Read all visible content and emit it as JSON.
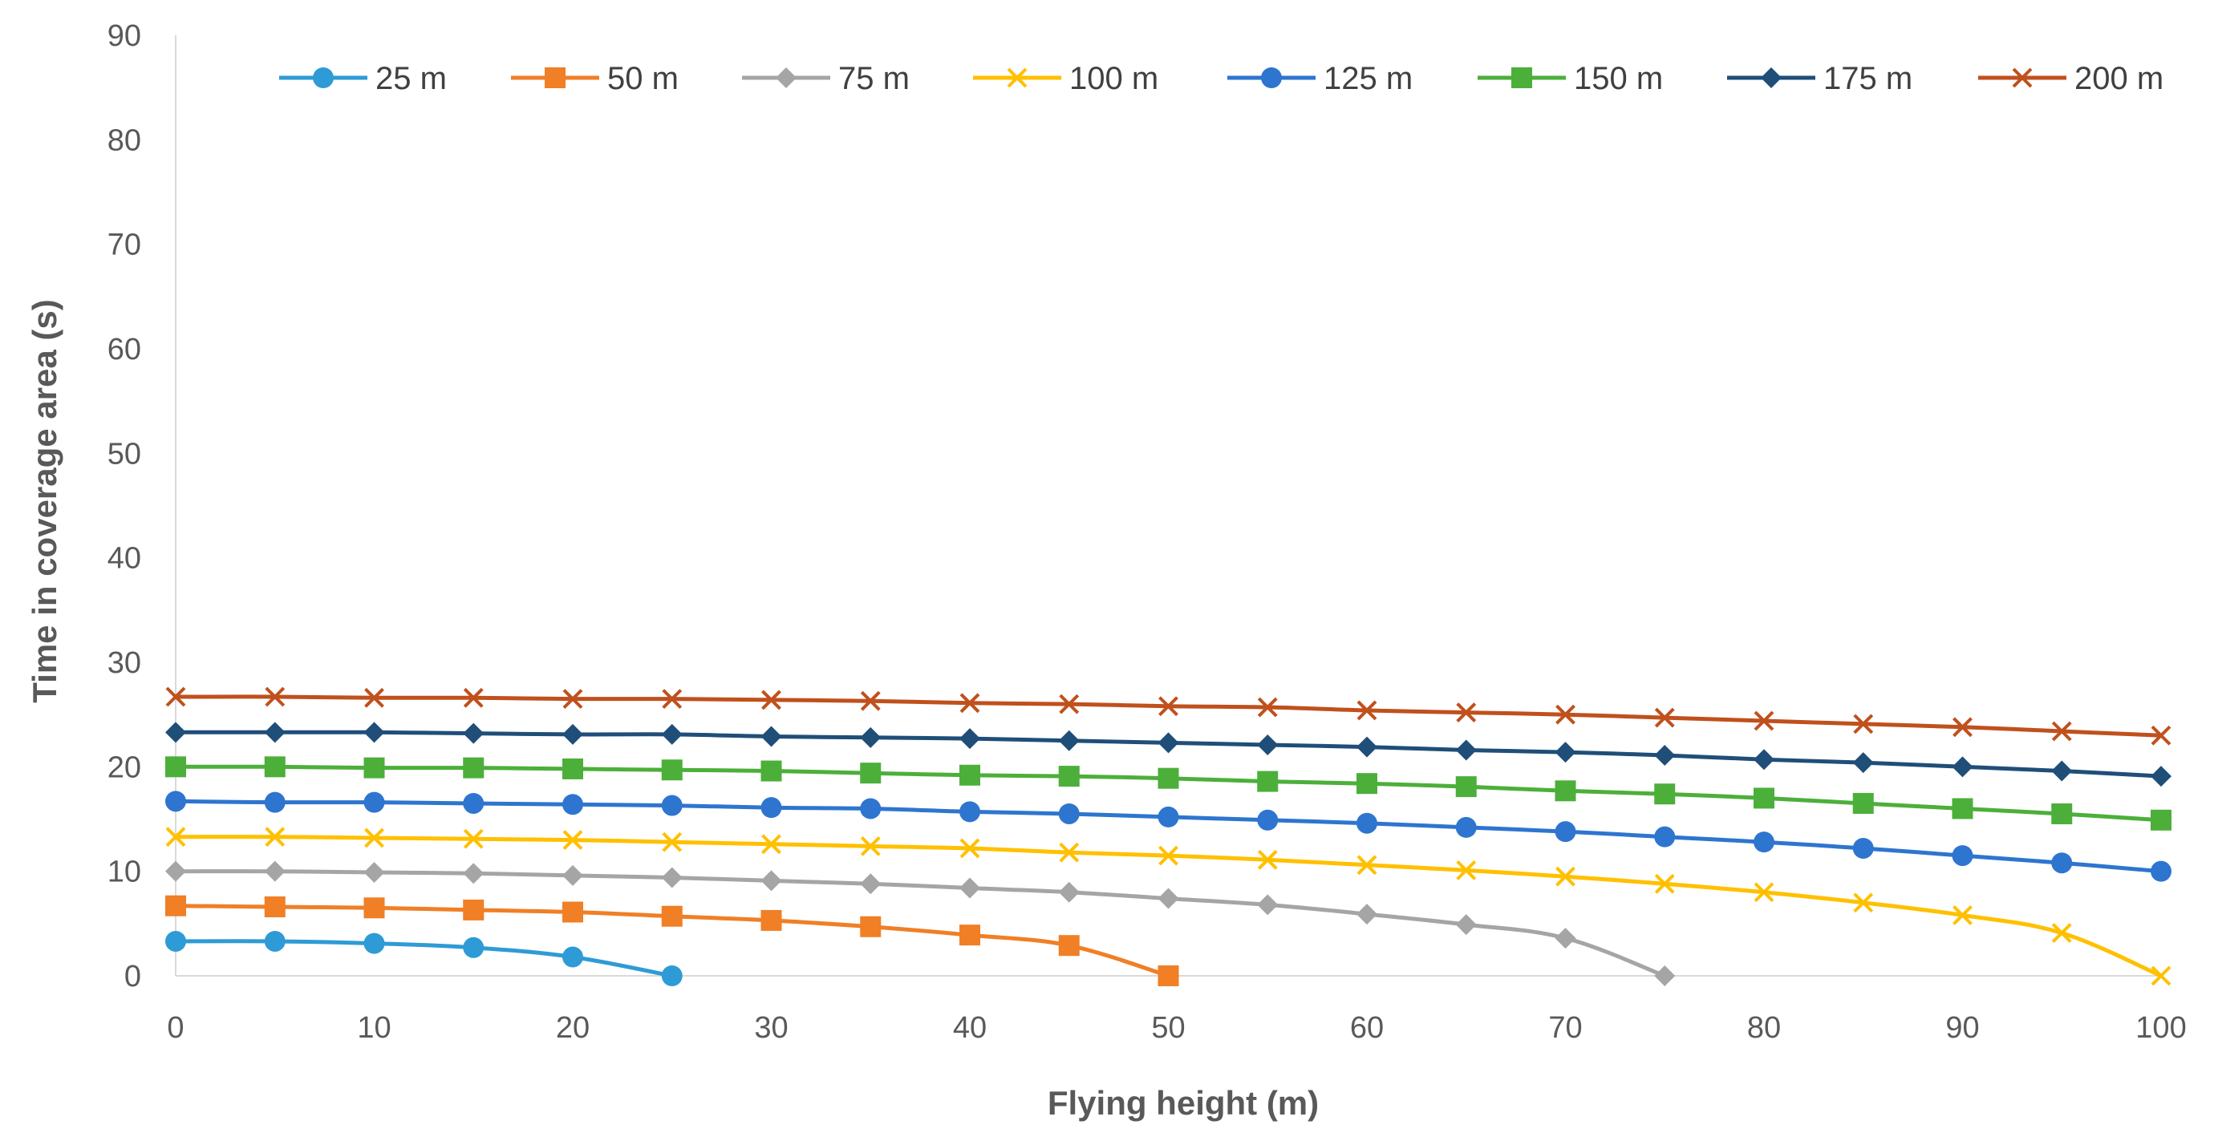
{
  "chart_data": {
    "type": "line",
    "title": "",
    "xlabel": "Flying height (m)",
    "ylabel": "Time in coverage area (s)",
    "xlim": [
      0,
      100
    ],
    "ylim": [
      0,
      90
    ],
    "x_ticks": [
      0,
      10,
      20,
      30,
      40,
      50,
      60,
      70,
      80,
      90,
      100
    ],
    "y_ticks": [
      0,
      10,
      20,
      30,
      40,
      50,
      60,
      70,
      80,
      90
    ],
    "grid": false,
    "legend_position": "top",
    "series": [
      {
        "name": "25 m",
        "color": "#2E9BD6",
        "marker": "circle",
        "x": [
          0,
          5,
          10,
          15,
          20,
          25
        ],
        "y": [
          3.3,
          3.3,
          3.1,
          2.7,
          1.8,
          0
        ]
      },
      {
        "name": "50 m",
        "color": "#F07F26",
        "marker": "square",
        "x": [
          0,
          5,
          10,
          15,
          20,
          25,
          30,
          35,
          40,
          45,
          50
        ],
        "y": [
          6.7,
          6.6,
          6.5,
          6.3,
          6.1,
          5.7,
          5.3,
          4.7,
          3.9,
          2.9,
          0
        ]
      },
      {
        "name": "75 m",
        "color": "#A5A5A5",
        "marker": "diamond",
        "x": [
          0,
          5,
          10,
          15,
          20,
          25,
          30,
          35,
          40,
          45,
          50,
          55,
          60,
          65,
          70,
          75
        ],
        "y": [
          10.0,
          10.0,
          9.9,
          9.8,
          9.6,
          9.4,
          9.1,
          8.8,
          8.4,
          8.0,
          7.4,
          6.8,
          5.9,
          4.9,
          3.6,
          0
        ]
      },
      {
        "name": "100 m",
        "color": "#FFC000",
        "marker": "x",
        "x": [
          0,
          5,
          10,
          15,
          20,
          25,
          30,
          35,
          40,
          45,
          50,
          55,
          60,
          65,
          70,
          75,
          80,
          85,
          90,
          95,
          100
        ],
        "y": [
          13.3,
          13.3,
          13.2,
          13.1,
          13.0,
          12.8,
          12.6,
          12.4,
          12.2,
          11.8,
          11.5,
          11.1,
          10.6,
          10.1,
          9.5,
          8.8,
          8.0,
          7.0,
          5.8,
          4.1,
          0
        ]
      },
      {
        "name": "125 m",
        "color": "#2E75CF",
        "marker": "circle",
        "x": [
          0,
          5,
          10,
          15,
          20,
          25,
          30,
          35,
          40,
          45,
          50,
          55,
          60,
          65,
          70,
          75,
          80,
          85,
          90,
          95,
          100
        ],
        "y": [
          16.7,
          16.6,
          16.6,
          16.5,
          16.4,
          16.3,
          16.1,
          16.0,
          15.7,
          15.5,
          15.2,
          14.9,
          14.6,
          14.2,
          13.8,
          13.3,
          12.8,
          12.2,
          11.5,
          10.8,
          10.0
        ]
      },
      {
        "name": "150 m",
        "color": "#4CAF3A",
        "marker": "square",
        "x": [
          0,
          5,
          10,
          15,
          20,
          25,
          30,
          35,
          40,
          45,
          50,
          55,
          60,
          65,
          70,
          75,
          80,
          85,
          90,
          95,
          100
        ],
        "y": [
          20.0,
          20.0,
          19.9,
          19.9,
          19.8,
          19.7,
          19.6,
          19.4,
          19.2,
          19.1,
          18.9,
          18.6,
          18.4,
          18.1,
          17.7,
          17.4,
          17.0,
          16.5,
          16.0,
          15.5,
          14.9
        ]
      },
      {
        "name": "175 m",
        "color": "#1F4E79",
        "marker": "diamond",
        "x": [
          0,
          5,
          10,
          15,
          20,
          25,
          30,
          35,
          40,
          45,
          50,
          55,
          60,
          65,
          70,
          75,
          80,
          85,
          90,
          95,
          100
        ],
        "y": [
          23.3,
          23.3,
          23.3,
          23.2,
          23.1,
          23.1,
          22.9,
          22.8,
          22.7,
          22.5,
          22.3,
          22.1,
          21.9,
          21.6,
          21.4,
          21.1,
          20.7,
          20.4,
          20.0,
          19.6,
          19.1
        ]
      },
      {
        "name": "200 m",
        "color": "#C0501C",
        "marker": "x",
        "x": [
          0,
          5,
          10,
          15,
          20,
          25,
          30,
          35,
          40,
          45,
          50,
          55,
          60,
          65,
          70,
          75,
          80,
          85,
          90,
          95,
          100
        ],
        "y": [
          26.7,
          26.7,
          26.6,
          26.6,
          26.5,
          26.5,
          26.4,
          26.3,
          26.1,
          26.0,
          25.8,
          25.7,
          25.4,
          25.2,
          25.0,
          24.7,
          24.4,
          24.1,
          23.8,
          23.4,
          23.0
        ]
      }
    ]
  }
}
